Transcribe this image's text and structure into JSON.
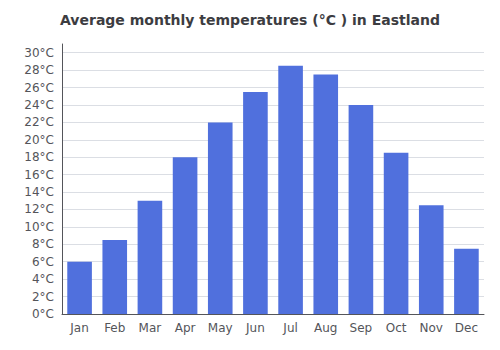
{
  "chart_data": {
    "type": "bar",
    "title": "Average monthly temperatures (°C ) in Eastland",
    "categories": [
      "Jan",
      "Feb",
      "Mar",
      "Apr",
      "May",
      "Jun",
      "Jul",
      "Aug",
      "Sep",
      "Oct",
      "Nov",
      "Dec"
    ],
    "values": [
      6.0,
      8.5,
      13.0,
      18.0,
      22.0,
      25.5,
      28.5,
      27.5,
      24.0,
      18.5,
      12.5,
      7.5
    ],
    "ylim": [
      0,
      31
    ],
    "yticks": [
      {
        "value": 0,
        "label": "0°C"
      },
      {
        "value": 2,
        "label": "2°C"
      },
      {
        "value": 4,
        "label": "4°C"
      },
      {
        "value": 6,
        "label": "6°C"
      },
      {
        "value": 8,
        "label": "8°C"
      },
      {
        "value": 10,
        "label": "10°C"
      },
      {
        "value": 12,
        "label": "12°C"
      },
      {
        "value": 14,
        "label": "14°C"
      },
      {
        "value": 16,
        "label": "16°C"
      },
      {
        "value": 18,
        "label": "18°C"
      },
      {
        "value": 20,
        "label": "20°C"
      },
      {
        "value": 22,
        "label": "22°C"
      },
      {
        "value": 24,
        "label": "24°C"
      },
      {
        "value": 26,
        "label": "26°C"
      },
      {
        "value": 28,
        "label": "28°C"
      },
      {
        "value": 30,
        "label": "30°C"
      }
    ],
    "grid": true
  }
}
